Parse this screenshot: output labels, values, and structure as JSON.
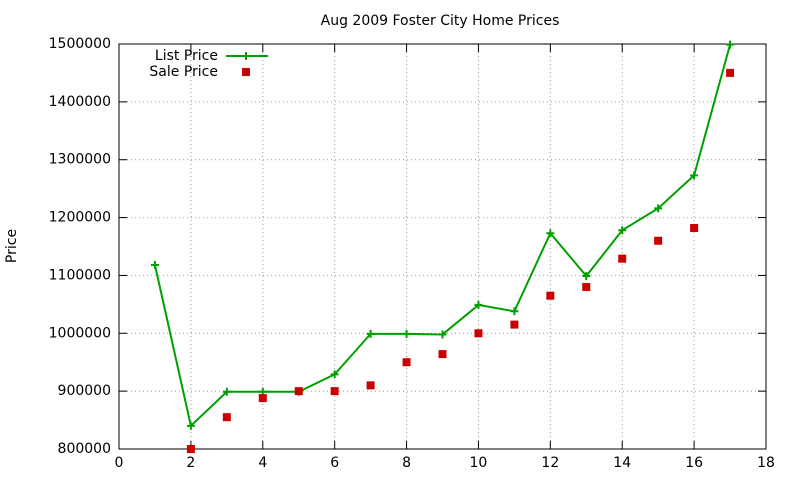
{
  "chart_data": {
    "type": "line",
    "title": "Aug 2009 Foster City Home Prices",
    "ylabel": "Price",
    "xlim": [
      0,
      18
    ],
    "xticks": [
      0,
      2,
      4,
      6,
      8,
      10,
      12,
      14,
      16,
      18
    ],
    "ylim": [
      800000,
      1500000
    ],
    "yticks": [
      800000,
      900000,
      1000000,
      1100000,
      1200000,
      1300000,
      1400000,
      1500000
    ],
    "grid": true,
    "legend": "top-left",
    "series": [
      {
        "name": "List Price",
        "color": "#00a000",
        "style": "linespoints",
        "x": [
          1,
          2,
          3,
          4,
          5,
          6,
          7,
          8,
          9,
          10,
          11,
          12,
          13,
          14,
          15,
          16,
          17
        ],
        "values": [
          1118000,
          840000,
          899000,
          899000,
          899000,
          929000,
          999000,
          999000,
          998000,
          1049000,
          1038000,
          1173000,
          1099000,
          1178000,
          1216000,
          1273000,
          1499000
        ]
      },
      {
        "name": "Sale Price",
        "color": "#cc0000",
        "style": "points",
        "x": [
          2,
          3,
          4,
          5,
          6,
          7,
          8,
          9,
          10,
          11,
          12,
          13,
          14,
          15,
          16,
          17
        ],
        "values": [
          800000,
          855000,
          888000,
          900000,
          900000,
          910000,
          950000,
          964000,
          1000000,
          1015000,
          1065000,
          1080000,
          1129000,
          1160000,
          1182000,
          1450000
        ]
      }
    ]
  }
}
